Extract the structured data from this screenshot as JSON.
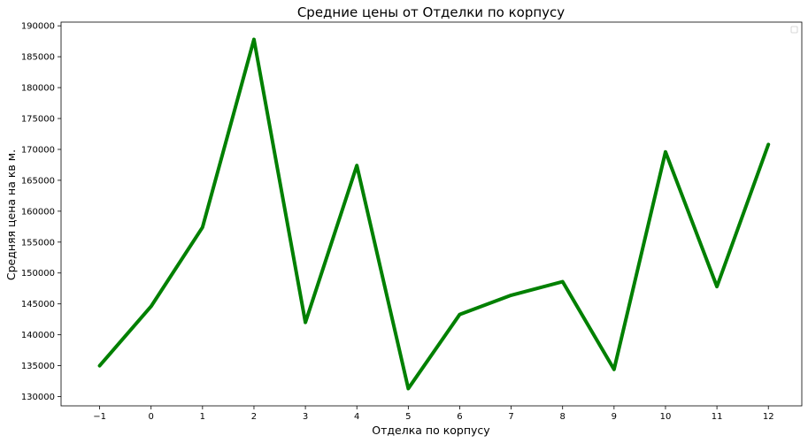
{
  "chart_data": {
    "type": "line",
    "title": "Средние цены от Отделки по корпусу",
    "xlabel": "Отделка по корпусу",
    "ylabel": "Средняя цена на кв м.",
    "x": [
      -1,
      0,
      1,
      2,
      3,
      4,
      5,
      6,
      7,
      8,
      9,
      10,
      11,
      12
    ],
    "x_tick_labels": [
      "−1",
      "0",
      "1",
      "2",
      "3",
      "4",
      "5",
      "6",
      "7",
      "8",
      "9",
      "10",
      "11",
      "12"
    ],
    "series": [
      {
        "color": "#008000",
        "values": [
          135000,
          144600,
          157400,
          187800,
          142000,
          167400,
          131300,
          143300,
          146400,
          148600,
          134400,
          169600,
          147800,
          170800
        ]
      }
    ],
    "yticks": [
      130000,
      135000,
      140000,
      145000,
      150000,
      155000,
      160000,
      165000,
      170000,
      175000,
      180000,
      185000,
      190000
    ],
    "xlim": [
      -1.75,
      12.65
    ],
    "ylim": [
      128500,
      190600
    ],
    "grid": false,
    "legend": "top-right, empty"
  }
}
